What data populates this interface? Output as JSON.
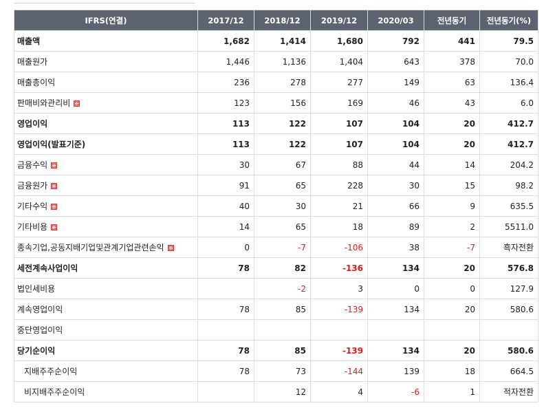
{
  "table": {
    "columns": [
      "IFRS(연결)",
      "2017/12",
      "2018/12",
      "2019/12",
      "2020/03",
      "전년동기",
      "전년동기(%)"
    ],
    "rows": [
      {
        "label": "매출액",
        "bold": true,
        "expand": false,
        "values": [
          "1,682",
          "1,414",
          "1,680",
          "792",
          "441",
          "79.5"
        ]
      },
      {
        "label": "매출원가",
        "bold": false,
        "expand": false,
        "values": [
          "1,446",
          "1,136",
          "1,404",
          "643",
          "378",
          "70.0"
        ]
      },
      {
        "label": "매출총이익",
        "bold": false,
        "expand": false,
        "values": [
          "236",
          "278",
          "277",
          "149",
          "63",
          "136.4"
        ]
      },
      {
        "label": "판매비와관리비",
        "bold": false,
        "expand": true,
        "values": [
          "123",
          "156",
          "169",
          "46",
          "43",
          "6.0"
        ]
      },
      {
        "label": "영업이익",
        "bold": true,
        "expand": false,
        "values": [
          "113",
          "122",
          "107",
          "104",
          "20",
          "412.7"
        ]
      },
      {
        "label": "영업이익(발표기준)",
        "bold": true,
        "expand": false,
        "values": [
          "113",
          "122",
          "107",
          "104",
          "20",
          "412.7"
        ]
      },
      {
        "label": "금융수익",
        "bold": false,
        "expand": true,
        "values": [
          "30",
          "67",
          "88",
          "44",
          "14",
          "204.2"
        ]
      },
      {
        "label": "금융원가",
        "bold": false,
        "expand": true,
        "values": [
          "91",
          "65",
          "228",
          "30",
          "15",
          "98.2"
        ]
      },
      {
        "label": "기타수익",
        "bold": false,
        "expand": true,
        "values": [
          "40",
          "30",
          "21",
          "66",
          "9",
          "635.5"
        ]
      },
      {
        "label": "기타비용",
        "bold": false,
        "expand": true,
        "values": [
          "14",
          "65",
          "18",
          "89",
          "2",
          "5511.0"
        ]
      },
      {
        "label": "종속기업,공동지배기업및관계기업관련손익",
        "bold": false,
        "expand": true,
        "values": [
          "0",
          "-7",
          "-106",
          "38",
          "-7",
          "흑자전환"
        ]
      },
      {
        "label": "세전계속사업이익",
        "bold": true,
        "expand": false,
        "values": [
          "78",
          "82",
          "-136",
          "134",
          "20",
          "576.8"
        ]
      },
      {
        "label": "법인세비용",
        "bold": false,
        "expand": false,
        "values": [
          "",
          "-2",
          "3",
          "0",
          "0",
          "127.9"
        ]
      },
      {
        "label": "계속영업이익",
        "bold": false,
        "expand": false,
        "values": [
          "78",
          "85",
          "-139",
          "134",
          "20",
          "580.6"
        ]
      },
      {
        "label": "중단영업이익",
        "bold": false,
        "expand": false,
        "values": [
          "",
          "",
          "",
          "",
          "",
          ""
        ]
      },
      {
        "label": "당기순이익",
        "bold": true,
        "expand": false,
        "values": [
          "78",
          "85",
          "-139",
          "134",
          "20",
          "580.6"
        ]
      },
      {
        "label": "지배주주순이익",
        "bold": false,
        "expand": false,
        "sub": true,
        "values": [
          "78",
          "73",
          "-144",
          "139",
          "18",
          "664.5"
        ]
      },
      {
        "label": "비지배주주순이익",
        "bold": false,
        "expand": false,
        "sub": true,
        "values": [
          "",
          "12",
          "4",
          "-6",
          "1",
          "적자전환"
        ]
      }
    ]
  },
  "colors": {
    "header_bg": "#5d6470",
    "negative": "#d61f1f",
    "expand_icon": "#e8746e"
  }
}
